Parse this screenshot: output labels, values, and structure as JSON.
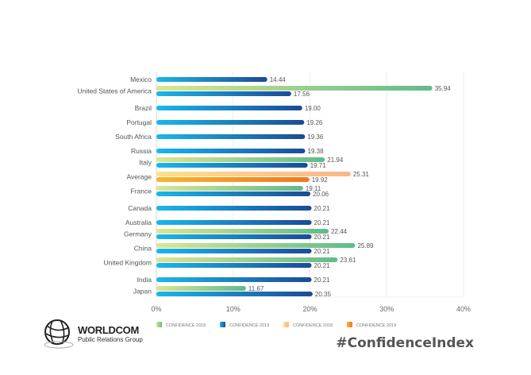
{
  "chart_data": {
    "type": "bar",
    "orientation": "horizontal",
    "xlim": [
      0,
      40
    ],
    "x_ticks": [
      "0%",
      "10%",
      "20%",
      "30%",
      "40%"
    ],
    "grid": true,
    "legend_position": "bottom",
    "legend": [
      {
        "key": "g",
        "label": "CONFIDENCE 2018"
      },
      {
        "key": "b",
        "label": "CONFIDENCE 2019"
      },
      {
        "key": "lo",
        "label": "CONFIDENCE 2018"
      },
      {
        "key": "o",
        "label": "CONFIDENCE 2019"
      }
    ],
    "categories": [
      {
        "name": "Mexico",
        "bars": [
          {
            "s": "b",
            "v": 14.44,
            "label": "14.44"
          }
        ]
      },
      {
        "name": "United States of America",
        "bars": [
          {
            "s": "g",
            "v": 35.94,
            "label": "35.94"
          },
          {
            "s": "b",
            "v": 17.56,
            "label": "17.56"
          }
        ]
      },
      {
        "name": "Brazil",
        "bars": [
          {
            "s": "b",
            "v": 19.0,
            "label": "19.00"
          }
        ]
      },
      {
        "name": "Portugal",
        "bars": [
          {
            "s": "b",
            "v": 19.26,
            "label": "19.26"
          }
        ]
      },
      {
        "name": "South Africa",
        "bars": [
          {
            "s": "b",
            "v": 19.36,
            "label": "19.36"
          }
        ]
      },
      {
        "name": "Russia",
        "bars": [
          {
            "s": "b",
            "v": 19.38,
            "label": "19.38"
          }
        ]
      },
      {
        "name": "Italy",
        "bars": [
          {
            "s": "g",
            "v": 21.94,
            "label": "21.94"
          },
          {
            "s": "b",
            "v": 19.71,
            "label": "19.71"
          }
        ]
      },
      {
        "name": "Average",
        "bars": [
          {
            "s": "lo",
            "v": 25.31,
            "label": "25.31"
          },
          {
            "s": "o",
            "v": 19.92,
            "label": "19.92"
          }
        ]
      },
      {
        "name": "France",
        "bars": [
          {
            "s": "g",
            "v": 19.11,
            "label": "19.11"
          },
          {
            "s": "b",
            "v": 20.06,
            "label": "20.06"
          }
        ]
      },
      {
        "name": "Canada",
        "bars": [
          {
            "s": "b",
            "v": 20.21,
            "label": "20.21"
          }
        ]
      },
      {
        "name": "Australia",
        "bars": [
          {
            "s": "b",
            "v": 20.21,
            "label": "20.21"
          }
        ]
      },
      {
        "name": "Germany",
        "bars": [
          {
            "s": "g",
            "v": 22.44,
            "label": "22.44"
          },
          {
            "s": "b",
            "v": 20.21,
            "label": "20.21"
          }
        ]
      },
      {
        "name": "China",
        "bars": [
          {
            "s": "g",
            "v": 25.89,
            "label": "25.89"
          },
          {
            "s": "b",
            "v": 20.21,
            "label": "20.21"
          }
        ]
      },
      {
        "name": "United Kingdom",
        "bars": [
          {
            "s": "g",
            "v": 23.61,
            "label": "23.61"
          },
          {
            "s": "b",
            "v": 20.21,
            "label": "20.21"
          }
        ]
      },
      {
        "name": "India",
        "bars": [
          {
            "s": "b",
            "v": 20.21,
            "label": "20.21"
          }
        ]
      },
      {
        "name": "Japan",
        "bars": [
          {
            "s": "g",
            "v": 11.67,
            "label": "11.67"
          },
          {
            "s": "b",
            "v": 20.35,
            "label": "20.35"
          }
        ]
      }
    ]
  },
  "colors": {
    "g": [
      "#dde68f",
      "#5fbb8c"
    ],
    "b": [
      "#1ab7ea",
      "#1b4b96"
    ],
    "lo": [
      "#fde08e",
      "#f9b68a"
    ],
    "o": [
      "#fbb526",
      "#f07622"
    ]
  },
  "branding": {
    "logo_name": "WORLDCOM",
    "logo_sub": "Public Relations Group",
    "hashtag": "#ConfidenceIndex"
  }
}
